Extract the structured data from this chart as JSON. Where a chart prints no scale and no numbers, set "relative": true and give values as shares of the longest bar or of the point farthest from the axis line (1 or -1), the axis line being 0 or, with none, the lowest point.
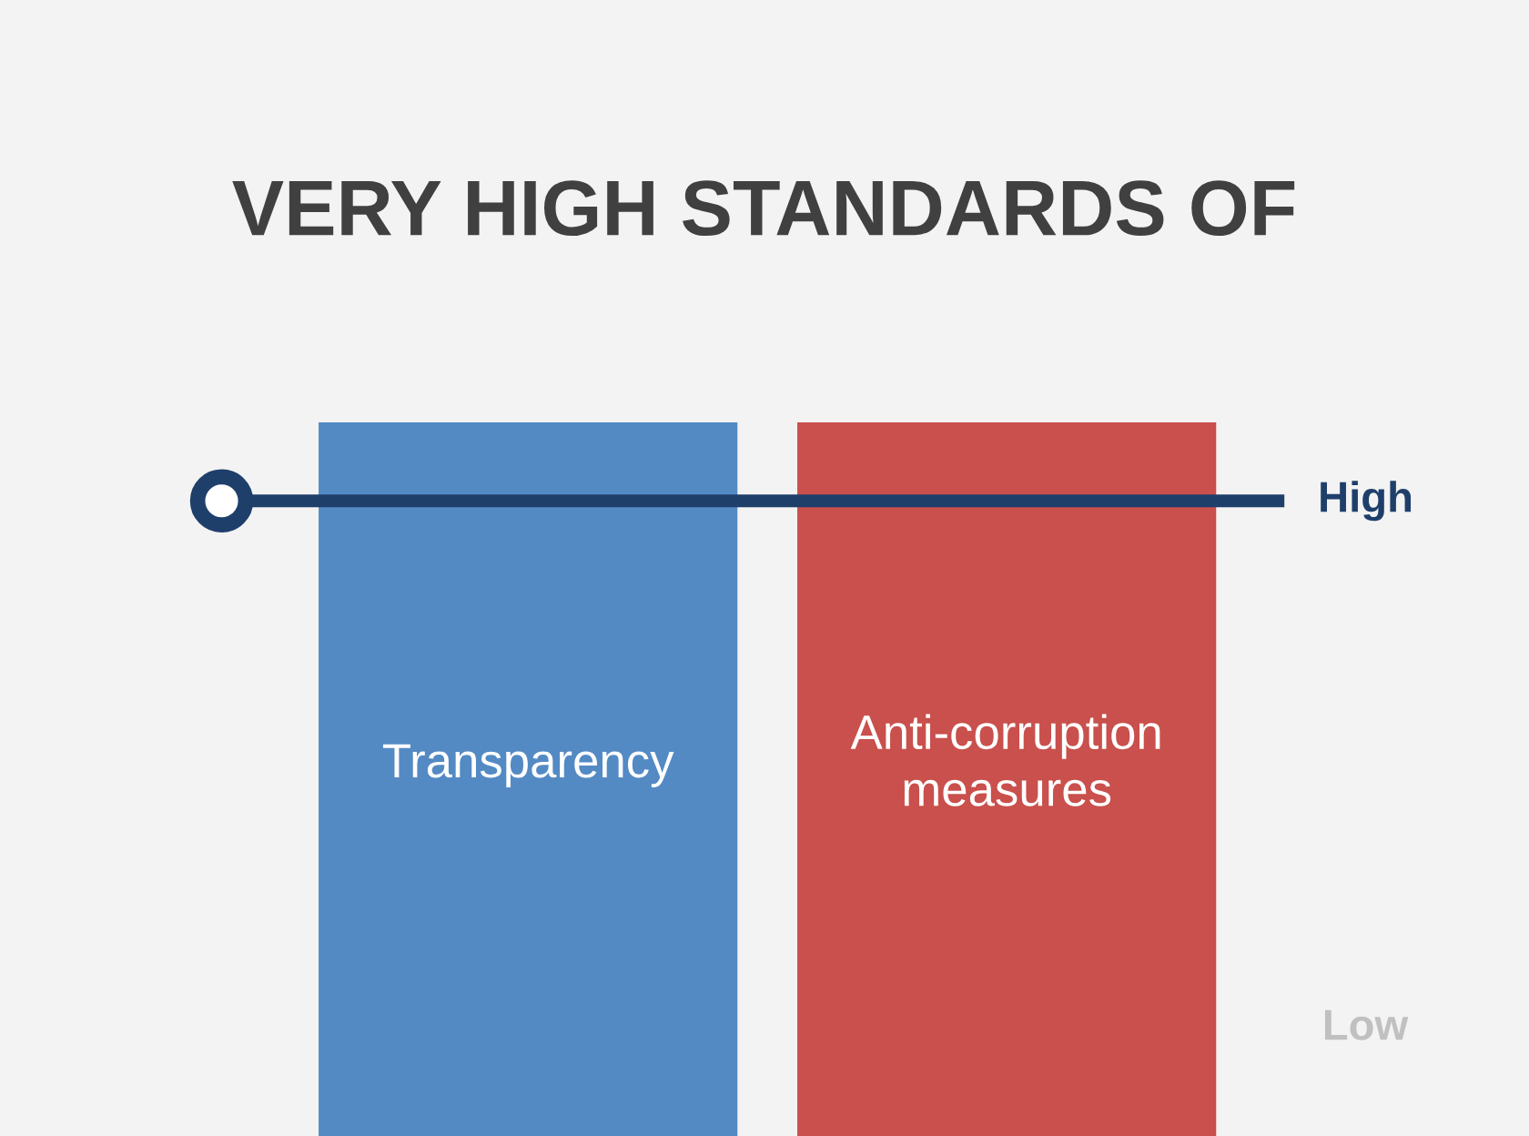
{
  "chart_data": {
    "type": "bar",
    "title": "VERY HIGH STANDARDS OF",
    "relative": true,
    "categories": [
      "Transparency",
      "Anti-corruption measures"
    ],
    "values": [
      1,
      1
    ],
    "colors": [
      "#548ac4",
      "#c9504c"
    ],
    "ref_lines": [
      {
        "axis": "y",
        "value": 0.89,
        "label": "High",
        "color": "#1f3f6b"
      }
    ],
    "annotations": [
      "Low"
    ]
  }
}
